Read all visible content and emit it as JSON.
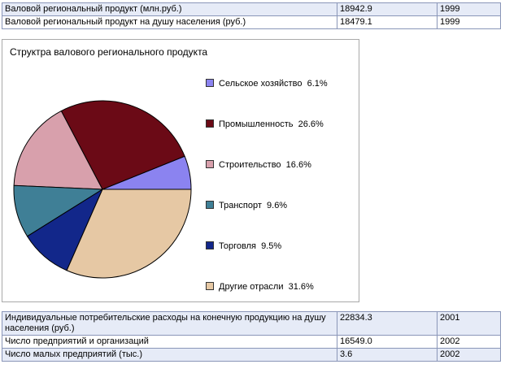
{
  "top_table": [
    {
      "label": "Валовой региональный продукт (млн.руб.)",
      "value": "18942.9",
      "year": "1999"
    },
    {
      "label": "Валовой региональный продукт на душу населения (руб.)",
      "value": "18479.1",
      "year": "1999"
    }
  ],
  "bottom_table": [
    {
      "label": "Индивидуальные потребительские расходы на конечную продукцию на душу населения (руб.)",
      "value": "22834.3",
      "year": "2001"
    },
    {
      "label": "Число предприятий и организаций",
      "value": "16549.0",
      "year": "2002"
    },
    {
      "label": "Число малых предприятий (тыс.)",
      "value": "3.6",
      "year": "2002"
    }
  ],
  "chart_data": {
    "type": "pie",
    "title": "Структра валового регионального продукта",
    "legend_position": "right",
    "slices": [
      {
        "label": "Сельское хозяйство",
        "value": 6.1,
        "value_label": "6.1%",
        "color": "#8b83f0"
      },
      {
        "label": "Промышленность",
        "value": 26.6,
        "value_label": "26.6%",
        "color": "#6b0a16"
      },
      {
        "label": "Строительство",
        "value": 16.6,
        "value_label": "16.6%",
        "color": "#d8a0ac"
      },
      {
        "label": "Транспорт",
        "value": 9.6,
        "value_label": "9.6%",
        "color": "#3f7f96"
      },
      {
        "label": "Торговля",
        "value": 9.5,
        "value_label": "9.5%",
        "color": "#12278a"
      },
      {
        "label": "Другие отрасли",
        "value": 31.6,
        "value_label": "31.6%",
        "color": "#e6c8a4"
      }
    ]
  }
}
